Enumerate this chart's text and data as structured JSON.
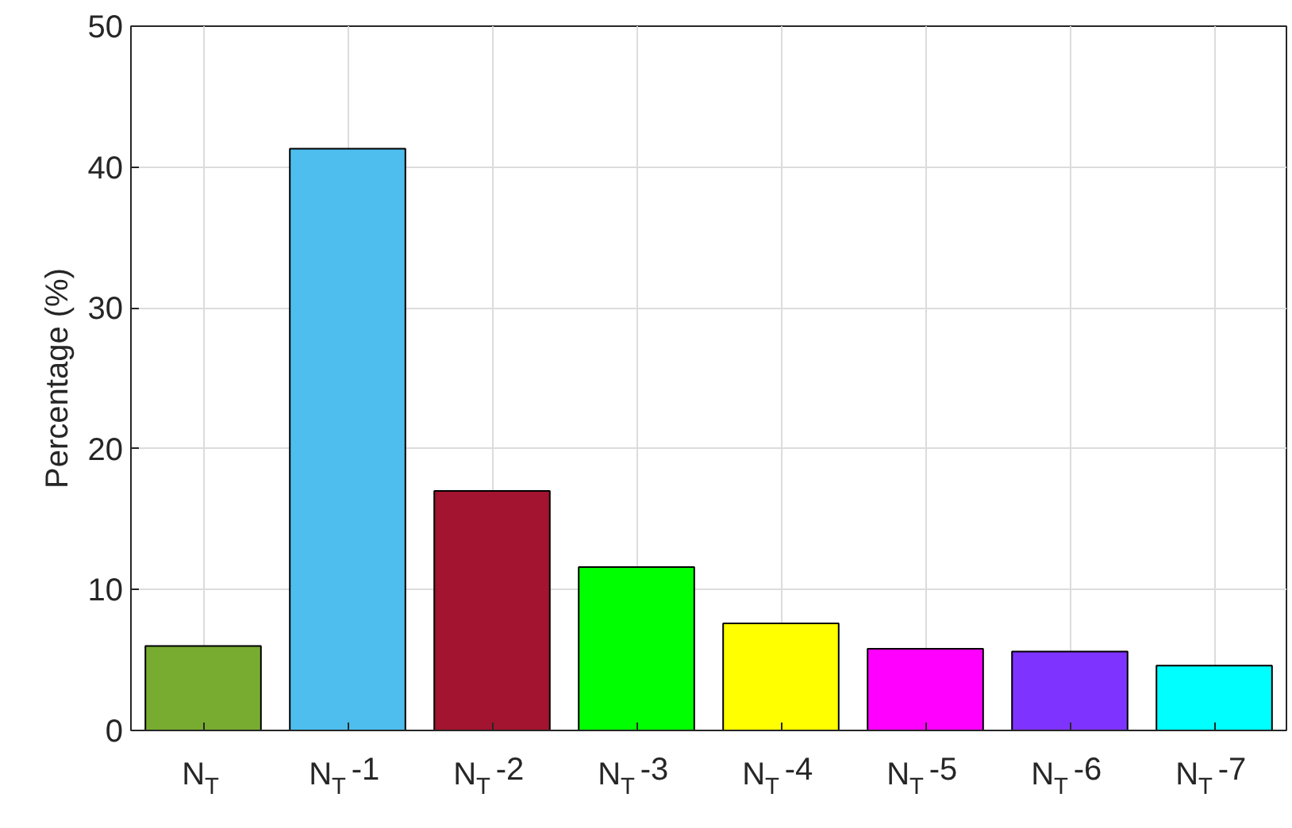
{
  "chart_data": {
    "type": "bar",
    "ylabel": "Percentage (%)",
    "categories": [
      "N$_{T}$",
      "N$_{T}$-1",
      "N$_{T}$-2",
      "N$_{T}$-3",
      "N$_{T}$-4",
      "N$_{T}$-5",
      "N$_{T}$-6",
      "N$_{T}$-7"
    ],
    "values": [
      6.0,
      41.3,
      17.0,
      11.6,
      7.6,
      5.8,
      5.6,
      4.6
    ],
    "colors": [
      "#77ac30",
      "#4dbeee",
      "#a2142f",
      "#00ff00",
      "#ffff00",
      "#ff00ff",
      "#7f33ff",
      "#00ffff"
    ],
    "ylim": [
      0,
      50
    ],
    "yticks": [
      0,
      10,
      20,
      30,
      40,
      50
    ],
    "grid": true
  }
}
